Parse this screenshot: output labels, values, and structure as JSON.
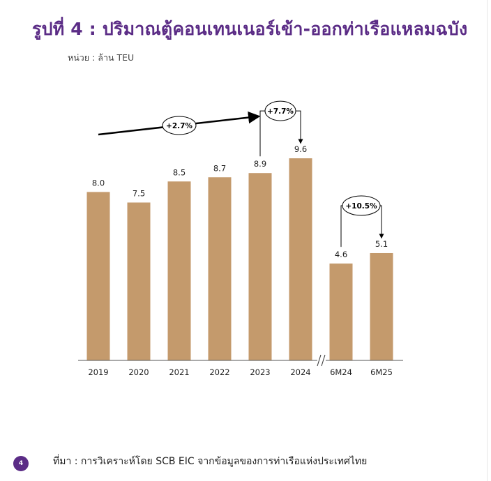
{
  "page": {
    "title": "รูปที่ 4 : ปริมาณตู้คอนเทนเนอร์เข้า-ออกท่าเรือแหลมฉบัง",
    "unit_label": "หน่วย : ล้าน TEU",
    "source": "ที่มา : การวิเคราะห์โดย SCB EIC จากข้อมูลของการท่าเรือแห่งประเทศไทย",
    "page_number": "4"
  },
  "chart_data": {
    "type": "bar",
    "categories": [
      "2019",
      "2020",
      "2021",
      "2022",
      "2023",
      "2024",
      "6M24",
      "6M25"
    ],
    "values": [
      8.0,
      7.5,
      8.5,
      8.7,
      8.9,
      9.6,
      4.6,
      5.1
    ],
    "value_labels": [
      "8.0",
      "7.5",
      "8.5",
      "8.7",
      "8.9",
      "9.6",
      "4.6",
      "5.1"
    ],
    "bar_color": "#c49a6c",
    "ylim": [
      0,
      12
    ],
    "axis_break_between": [
      "2024",
      "6M24"
    ],
    "annotations": [
      {
        "label": "+2.7%",
        "type": "trend-arrow",
        "from": "2019",
        "to": "2023"
      },
      {
        "label": "+7.7%",
        "type": "bracket-arrow",
        "from": "2023",
        "to": "2024"
      },
      {
        "label": "+10.5%",
        "type": "bracket-arrow",
        "from": "6M24",
        "to": "6M25"
      }
    ]
  }
}
